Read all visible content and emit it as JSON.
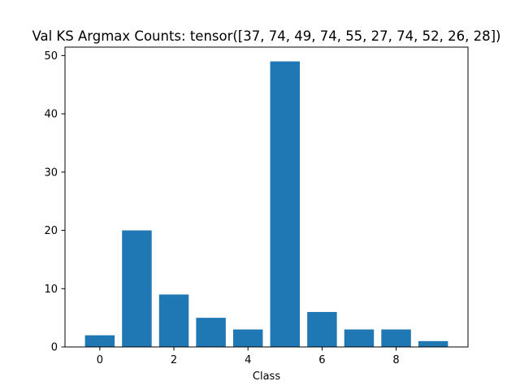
{
  "chart_data": {
    "type": "bar",
    "title": "Val KS Argmax Counts: tensor([37, 74, 49, 74, 55, 27, 74, 52, 26, 28])",
    "xlabel": "Class",
    "ylabel": "",
    "categories": [
      0,
      1,
      2,
      3,
      4,
      5,
      6,
      7,
      8,
      9
    ],
    "values": [
      2,
      20,
      9,
      5,
      3,
      49,
      6,
      3,
      3,
      1
    ],
    "xlim": [
      -0.94,
      9.94
    ],
    "ylim": [
      0,
      51.45
    ],
    "xticks": [
      0,
      2,
      4,
      6,
      8
    ],
    "yticks": [
      0,
      10,
      20,
      30,
      40,
      50
    ],
    "bar_color": "#1f77b4",
    "grid": false,
    "legend": "none"
  }
}
